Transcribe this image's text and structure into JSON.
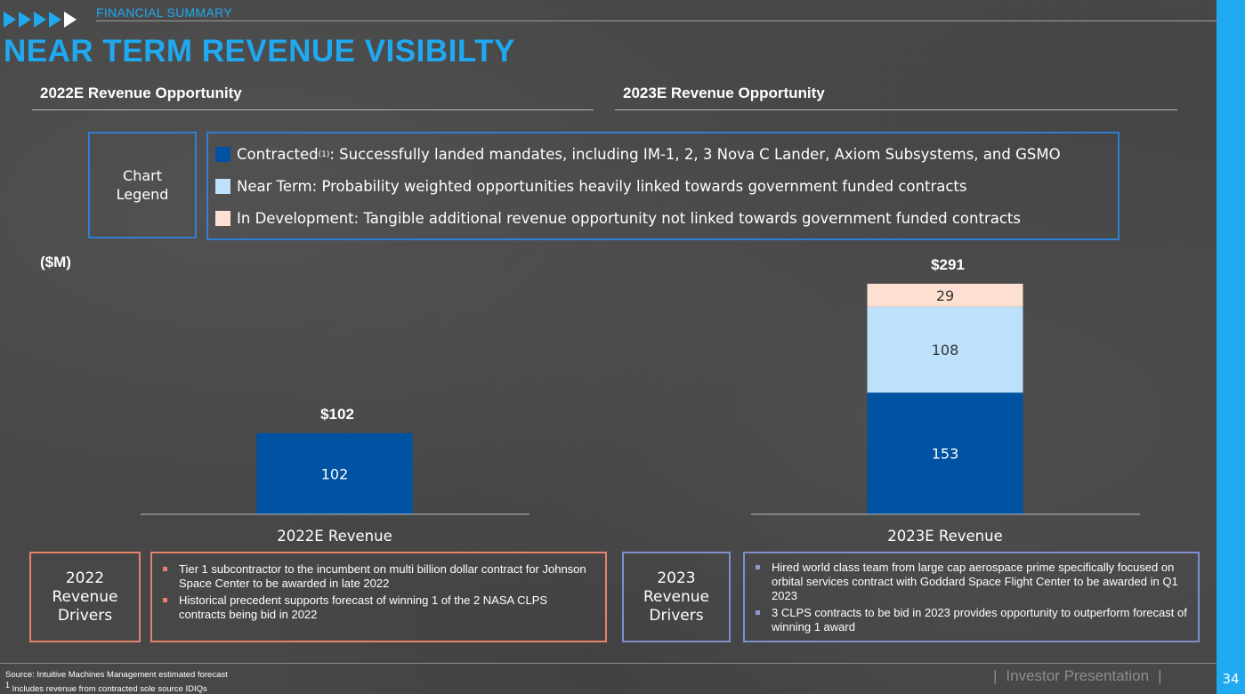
{
  "header": {
    "section": "FINANCIAL SUMMARY",
    "title": "NEAR TERM REVENUE VISIBILTY"
  },
  "subtitles": {
    "left": "2022E Revenue Opportunity",
    "right": "2023E Revenue Opportunity"
  },
  "legend": {
    "label_line1": "Chart",
    "label_line2": "Legend",
    "items": [
      {
        "name": "Contracted",
        "sup": "(1)",
        "text": ": Successfully landed mandates, including IM-1, 2, 3 Nova C Lander, Axiom Subsystems, and GSMO",
        "color": "#0052a3"
      },
      {
        "name": "Near Term",
        "sup": "",
        "text": ": Probability weighted opportunities heavily linked towards government funded contracts",
        "color": "#bde0fb"
      },
      {
        "name": "In Development",
        "sup": "",
        "text": ": Tangible additional revenue opportunity not linked towards government funded contracts",
        "color": "#fde0d2"
      }
    ]
  },
  "chart_data": {
    "type": "bar",
    "stacked": true,
    "units_label": "($M)",
    "categories": [
      "2022E Revenue",
      "2023E Revenue"
    ],
    "totals": [
      "$102",
      "$291"
    ],
    "series": [
      {
        "name": "Contracted",
        "values": [
          102,
          153
        ],
        "color": "#0052a3",
        "label_color": "#ffffff"
      },
      {
        "name": "Near Term",
        "values": [
          0,
          108
        ],
        "color": "#bde0fb",
        "label_color": "#333333"
      },
      {
        "name": "In Development",
        "values": [
          0,
          29
        ],
        "color": "#fde0d2",
        "label_color": "#333333"
      }
    ],
    "ylim": [
      0,
      291
    ],
    "grid": false
  },
  "drivers": {
    "y2022": {
      "title_line1": "2022",
      "title_line2": "Revenue",
      "title_line3": "Drivers",
      "bullets": [
        "Tier 1 subcontractor to the incumbent on multi billion dollar contract for Johnson Space Center to be awarded in late 2022",
        "Historical precedent supports forecast of winning 1 of the 2 NASA CLPS contracts being bid in 2022"
      ],
      "color": "#e8836b"
    },
    "y2023": {
      "title_line1": "2023",
      "title_line2": "Revenue",
      "title_line3": "Drivers",
      "bullets": [
        "Hired world class team from large cap aerospace prime specifically focused on orbital services contract with Goddard Space Flight Center to be awarded in Q1 2023",
        "3 CLPS contracts to be bid in 2023 provides opportunity to outperform forecast of winning 1 award"
      ],
      "color": "#7f8fcc"
    }
  },
  "footer": {
    "source": "Source: Intuitive Machines Management estimated forecast",
    "note_sup": "1",
    "note": "Includes revenue from contracted sole source IDIQs",
    "presentation": "Investor Presentation",
    "page": "34"
  }
}
